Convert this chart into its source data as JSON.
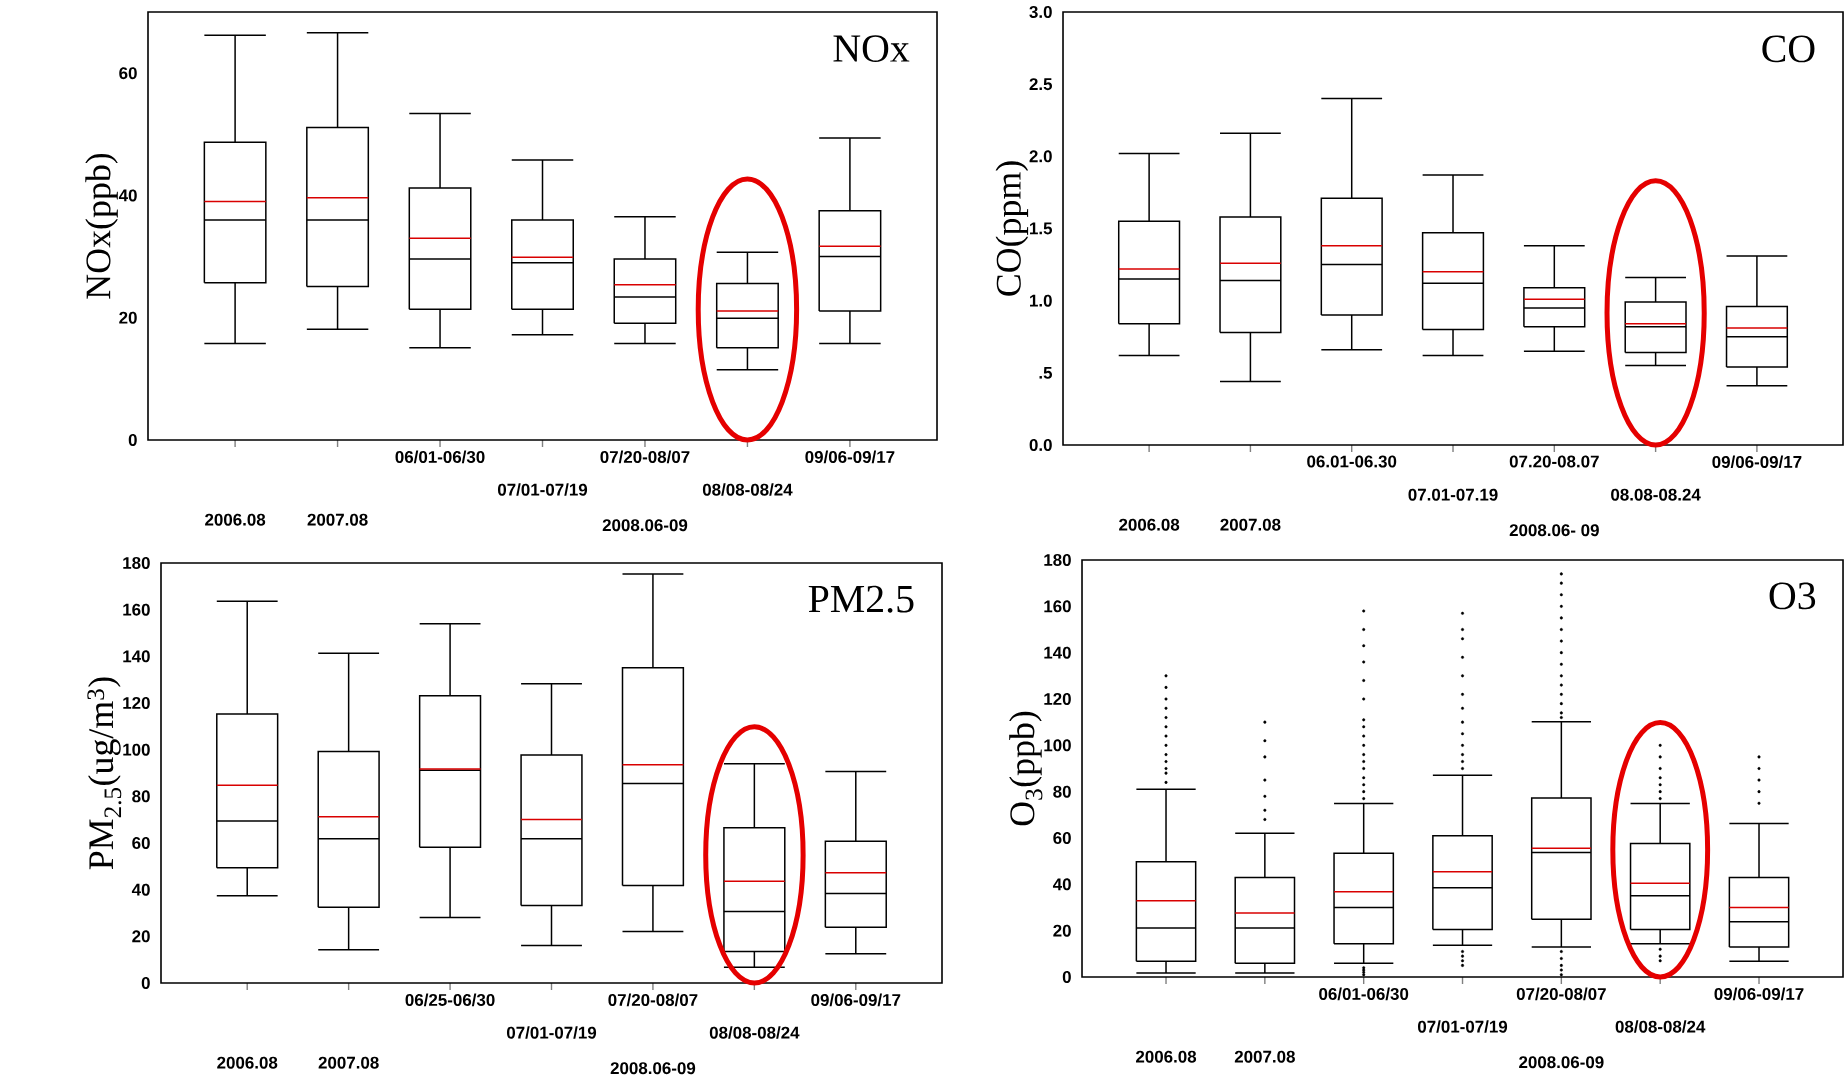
{
  "chart_data": [
    {
      "type": "box",
      "title": "NOx",
      "ylabel": "NOx(ppb)",
      "categories": [
        "2006.08",
        "2007.08",
        "06/01-06/30",
        "07/01-07/19",
        "07/20-08/07",
        "08/08-08/24",
        "09/06-09/17"
      ],
      "annotations": [
        "2008.06-09"
      ],
      "ylim": [
        0,
        70
      ],
      "yticks": [
        0,
        20,
        40,
        60
      ],
      "series": [
        {
          "color": "#000000",
          "boxes": [
            {
              "low": 15.8,
              "q1": 25.7,
              "median": 36,
              "q3": 48.7,
              "high": 66.2,
              "mean": 39
            },
            {
              "low": 18.1,
              "q1": 25.1,
              "median": 36,
              "q3": 51.1,
              "high": 66.6,
              "mean": 39.6
            },
            {
              "low": 15.1,
              "q1": 21.4,
              "median": 29.6,
              "q3": 41.2,
              "high": 53.4,
              "mean": 33
            },
            {
              "low": 17.2,
              "q1": 21.4,
              "median": 29,
              "q3": 36,
              "high": 45.8,
              "mean": 29.9
            },
            {
              "low": 15.8,
              "q1": 19.1,
              "median": 23.4,
              "q3": 29.6,
              "high": 36.5,
              "mean": 25.4
            },
            {
              "low": 11.5,
              "q1": 15.1,
              "median": 19.9,
              "q3": 25.6,
              "high": 30.7,
              "mean": 21.1
            },
            {
              "low": 15.8,
              "q1": 21.1,
              "median": 30,
              "q3": 37.5,
              "high": 49.4,
              "mean": 31.7
            }
          ]
        }
      ]
    },
    {
      "type": "box",
      "title": "CO",
      "ylabel": "CO(ppm)",
      "categories": [
        "2006.08",
        "2007.08",
        "06.01-06.30",
        "07.01-07.19",
        "07.20-08.07",
        "08.08-08.24",
        "09/06-09/17"
      ],
      "annotations": [
        "2008.06- 09"
      ],
      "ylim": [
        0,
        3
      ],
      "yticks": [
        {
          "value": 0,
          "label": "0.0"
        },
        {
          "value": 0.5,
          "label": ".5"
        },
        {
          "value": 1,
          "label": "1.0"
        },
        {
          "value": 1.5,
          "label": "1.5"
        },
        {
          "value": 2,
          "label": "2.0"
        },
        {
          "value": 2.5,
          "label": "2.5"
        },
        {
          "value": 3,
          "label": "3.0"
        }
      ],
      "series": [
        {
          "color": "#000000",
          "boxes": [
            {
              "low": 0.62,
              "q1": 0.84,
              "median": 1.15,
              "q3": 1.55,
              "high": 2.02,
              "mean": 1.22
            },
            {
              "low": 0.44,
              "q1": 0.78,
              "median": 1.14,
              "q3": 1.58,
              "high": 2.16,
              "mean": 1.26
            },
            {
              "low": 0.66,
              "q1": 0.9,
              "median": 1.25,
              "q3": 1.71,
              "high": 2.4,
              "mean": 1.38
            },
            {
              "low": 0.62,
              "q1": 0.8,
              "median": 1.12,
              "q3": 1.47,
              "high": 1.87,
              "mean": 1.2
            },
            {
              "low": 0.65,
              "q1": 0.82,
              "median": 0.95,
              "q3": 1.09,
              "high": 1.38,
              "mean": 1.01
            },
            {
              "low": 0.55,
              "q1": 0.64,
              "median": 0.82,
              "q3": 0.99,
              "high": 1.16,
              "mean": 0.84
            },
            {
              "low": 0.41,
              "q1": 0.54,
              "median": 0.75,
              "q3": 0.96,
              "high": 1.31,
              "mean": 0.81
            }
          ]
        }
      ]
    },
    {
      "type": "box",
      "title": "PM2.5",
      "ylabel": "PM$_{2.5}$(ug/m$^{3}$)",
      "categories": [
        "2006.08",
        "2007.08",
        "06/25-06/30",
        "07/01-07/19",
        "07/20-08/07",
        "08/08-08/24",
        "09/06-09/17"
      ],
      "annotations": [
        "2008.06-09"
      ],
      "ylim": [
        0,
        180
      ],
      "yticks": [
        0,
        20,
        40,
        60,
        80,
        100,
        120,
        140,
        160,
        180
      ],
      "series": [
        {
          "color": "#000000",
          "boxes": [
            {
              "low": 37.4,
              "q1": 49.4,
              "median": 69.4,
              "q3": 115.3,
              "high": 163.6,
              "mean": 84.7
            },
            {
              "low": 14.3,
              "q1": 32.5,
              "median": 61.8,
              "q3": 99.2,
              "high": 141.3,
              "mean": 71.2
            },
            {
              "low": 28.1,
              "q1": 58.2,
              "median": 91.2,
              "q3": 123.1,
              "high": 154,
              "mean": 91.7
            },
            {
              "low": 16.1,
              "q1": 33.2,
              "median": 61.8,
              "q3": 97.7,
              "high": 128.3,
              "mean": 70.1
            },
            {
              "low": 22.1,
              "q1": 41.8,
              "median": 85.5,
              "q3": 135.1,
              "high": 175.3,
              "mean": 93.5
            },
            {
              "low": 6.8,
              "q1": 13.5,
              "median": 30.6,
              "q3": 66.5,
              "high": 94,
              "mean": 43.6
            },
            {
              "low": 12.5,
              "q1": 23.9,
              "median": 38.4,
              "q3": 60.8,
              "high": 90.6,
              "mean": 47.3
            }
          ]
        }
      ]
    },
    {
      "type": "box",
      "title": "O3",
      "ylabel": "O$_{3}$(ppb)",
      "categories": [
        "2006.08",
        "2007.08",
        "06/01-06/30",
        "07/01-07/19",
        "07/20-08/07",
        "08/08-08/24",
        "09/06-09/17"
      ],
      "annotations": [
        "2008.06-09"
      ],
      "ylim": [
        0,
        180
      ],
      "yticks": [
        0,
        20,
        40,
        60,
        80,
        100,
        120,
        140,
        160,
        180
      ],
      "series": [
        {
          "color": "#000000",
          "boxes": [
            {
              "low": 1.7,
              "q1": 6.8,
              "median": 21.2,
              "q3": 49.8,
              "high": 81,
              "mean": 32.9,
              "outliers": [
                84,
                88,
                90,
                93,
                96,
                100,
                104,
                108,
                112,
                116,
                120,
                125,
                130
              ]
            },
            {
              "low": 1.7,
              "q1": 5.9,
              "median": 21.2,
              "q3": 42.9,
              "high": 62,
              "mean": 27.6,
              "outliers": [
                68,
                72,
                78,
                85,
                95,
                102,
                110
              ]
            },
            {
              "low": 5.9,
              "q1": 14.4,
              "median": 30,
              "q3": 53.4,
              "high": 74.9,
              "mean": 36.8,
              "outliers": [
                1,
                2,
                3,
                4,
                77,
                80,
                83,
                86,
                90,
                93,
                96,
                100,
                104,
                108,
                111,
                120,
                128,
                136,
                143,
                150,
                158
              ]
            },
            {
              "low": 13.7,
              "q1": 20.5,
              "median": 38.5,
              "q3": 61,
              "high": 87.1,
              "mean": 45.4,
              "outliers": [
                5,
                7,
                9,
                11,
                90,
                93,
                96,
                100,
                105,
                110,
                116,
                122,
                130,
                138,
                146,
                150,
                157
              ]
            },
            {
              "low": 12.9,
              "q1": 24.9,
              "median": 53.7,
              "q3": 77.3,
              "high": 110.2,
              "mean": 55.6,
              "outliers": [
                1,
                3,
                5,
                8,
                11,
                112,
                114,
                118,
                122,
                126,
                130,
                135,
                140,
                145,
                150,
                155,
                160,
                165,
                170,
                174
              ]
            },
            {
              "low": 14.4,
              "q1": 20.5,
              "median": 35.1,
              "q3": 57.6,
              "high": 74.9,
              "mean": 40.5,
              "outliers": [
                7,
                9,
                12,
                77,
                80,
                83,
                86,
                90,
                95,
                100
              ]
            },
            {
              "low": 6.8,
              "q1": 12.9,
              "median": 23.9,
              "q3": 42.9,
              "high": 66.3,
              "mean": 30,
              "outliers": [
                75,
                80,
                85,
                90,
                95
              ]
            }
          ]
        }
      ]
    }
  ]
}
